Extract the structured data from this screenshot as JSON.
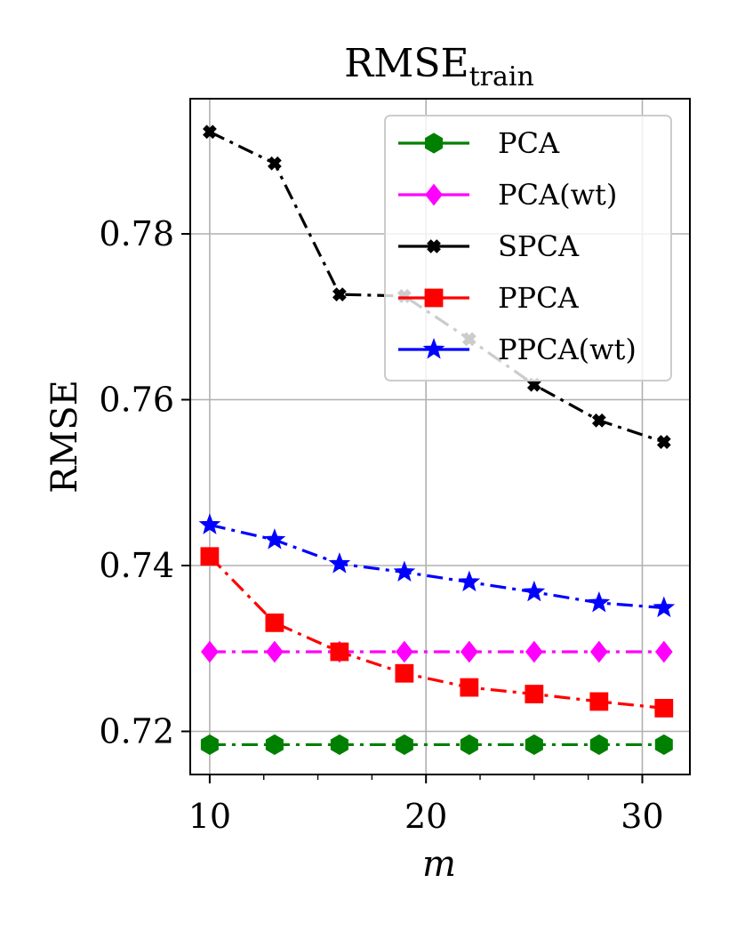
{
  "chart_data": {
    "type": "line",
    "title": "RMSE",
    "title_subscript": "train",
    "xlabel": "m",
    "ylabel": "RMSE",
    "xlim": [
      9.1,
      32.2
    ],
    "ylim": [
      0.7148,
      0.7963
    ],
    "x_ticks": [
      10,
      20,
      30
    ],
    "x_tick_labels": [
      "10",
      "20",
      "30"
    ],
    "y_ticks": [
      0.72,
      0.74,
      0.76,
      0.78
    ],
    "y_tick_labels": [
      "0.72",
      "0.74",
      "0.76",
      "0.78"
    ],
    "grid": true,
    "legend_position": "top-right",
    "x": [
      10,
      13,
      16,
      19,
      22,
      25,
      28,
      31
    ],
    "series": [
      {
        "name": "PCA",
        "color": "#008000",
        "marker": "hexagon",
        "linestyle": "dashdot",
        "values": [
          0.7184,
          0.7184,
          0.7184,
          0.7184,
          0.7184,
          0.7184,
          0.7184,
          0.7184
        ]
      },
      {
        "name": "PCA(wt)",
        "color": "#ff00ff",
        "marker": "diamond",
        "linestyle": "dashdot",
        "values": [
          0.7296,
          0.7296,
          0.7296,
          0.7296,
          0.7296,
          0.7296,
          0.7296,
          0.7296
        ]
      },
      {
        "name": "SPCA",
        "color": "#000000",
        "marker": "x",
        "linestyle": "dashdot",
        "values": [
          0.7923,
          0.7885,
          0.7727,
          0.7725,
          0.7673,
          0.7618,
          0.7575,
          0.7549
        ]
      },
      {
        "name": "PPCA",
        "color": "#ff0000",
        "marker": "square",
        "linestyle": "dashdot",
        "values": [
          0.7411,
          0.7331,
          0.7296,
          0.727,
          0.7253,
          0.7245,
          0.7236,
          0.7228
        ]
      },
      {
        "name": "PPCA(wt)",
        "color": "#0000ff",
        "marker": "star",
        "linestyle": "dashdot",
        "values": [
          0.7449,
          0.7431,
          0.7402,
          0.7392,
          0.738,
          0.7368,
          0.7355,
          0.7349
        ]
      }
    ]
  }
}
